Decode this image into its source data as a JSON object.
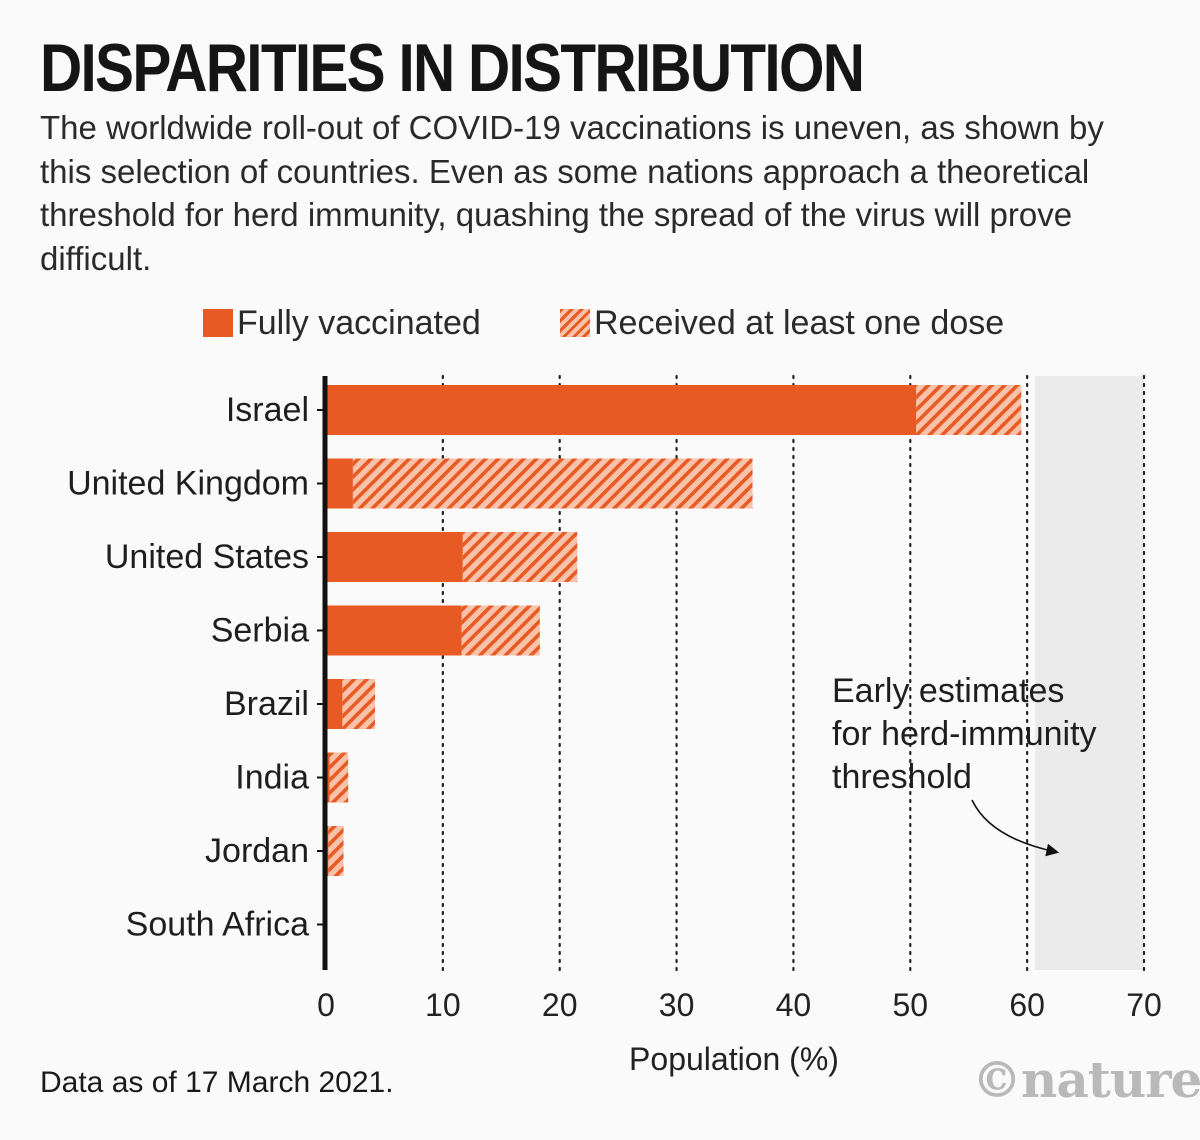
{
  "title": "DISPARITIES IN DISTRIBUTION",
  "subtitle": "The worldwide roll-out of COVID-19 vaccinations is uneven, as shown by this selection of countries. Even as some nations approach a theoretical threshold for herd immunity, quashing the spread of the virus will prove difficult.",
  "legend": {
    "fully": "Fully vaccinated",
    "dose": "Received at least one dose"
  },
  "footer": "Data as of 17 March 2021.",
  "brand": "©nature",
  "colors": {
    "solid": "#e85a24",
    "hatch_light": "#f9c3ab",
    "band": "#ebebeb",
    "axis": "#111111"
  },
  "chart_data": {
    "type": "bar",
    "orientation": "horizontal",
    "categories": [
      "Israel",
      "United Kingdom",
      "United States",
      "Serbia",
      "Brazil",
      "India",
      "Jordan",
      "South Africa"
    ],
    "series": [
      {
        "name": "Fully vaccinated",
        "values": [
          50.5,
          2.3,
          11.7,
          11.6,
          1.4,
          0.3,
          0.2,
          0.0
        ]
      },
      {
        "name": "Received at least one dose",
        "values": [
          59.5,
          36.5,
          21.5,
          18.3,
          4.2,
          1.9,
          1.5,
          0.0
        ]
      }
    ],
    "xlabel": "Population (%)",
    "xlim": [
      0,
      70
    ],
    "xticks": [
      0,
      10,
      20,
      30,
      40,
      50,
      60,
      70
    ],
    "grid": "vertical dotted",
    "band": {
      "from": 60,
      "to": 70
    },
    "annotation": "Early estimates for herd-immunity threshold"
  }
}
